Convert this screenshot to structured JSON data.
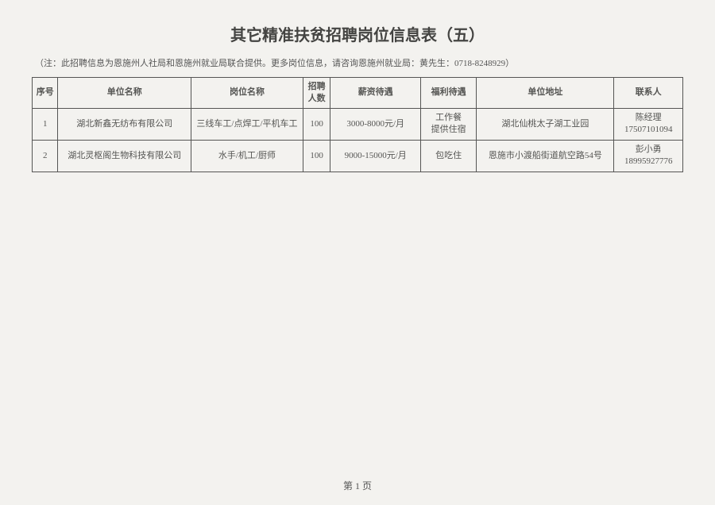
{
  "title": "其它精准扶贫招聘岗位信息表（五）",
  "note": "（注：此招聘信息为恩施州人社局和恩施州就业局联合提供。更多岗位信息，请咨询恩施州就业局：黄先生：0718-8248929）",
  "columns": [
    "序号",
    "单位名称",
    "岗位名称",
    "招聘人数",
    "薪资待遇",
    "福利待遇",
    "单位地址",
    "联系人"
  ],
  "rows": [
    {
      "idx": "1",
      "unit": "湖北新鑫无纺布有限公司",
      "job": "三线车工/点焊工/平机车工",
      "num": "100",
      "salary": "3000-8000元/月",
      "benefit": "工作餐\n提供住宿",
      "address": "湖北仙桃太子湖工业园",
      "contact": "陈经理\n17507101094"
    },
    {
      "idx": "2",
      "unit": "湖北灵枢阁生物科技有限公司",
      "job": "水手/机工/厨师",
      "num": "100",
      "salary": "9000-15000元/月",
      "benefit": "包吃住",
      "address": "恩施市小渡船街道航空路54号",
      "contact": "彭小勇\n18995927776"
    }
  ],
  "footer": "第 1 页"
}
